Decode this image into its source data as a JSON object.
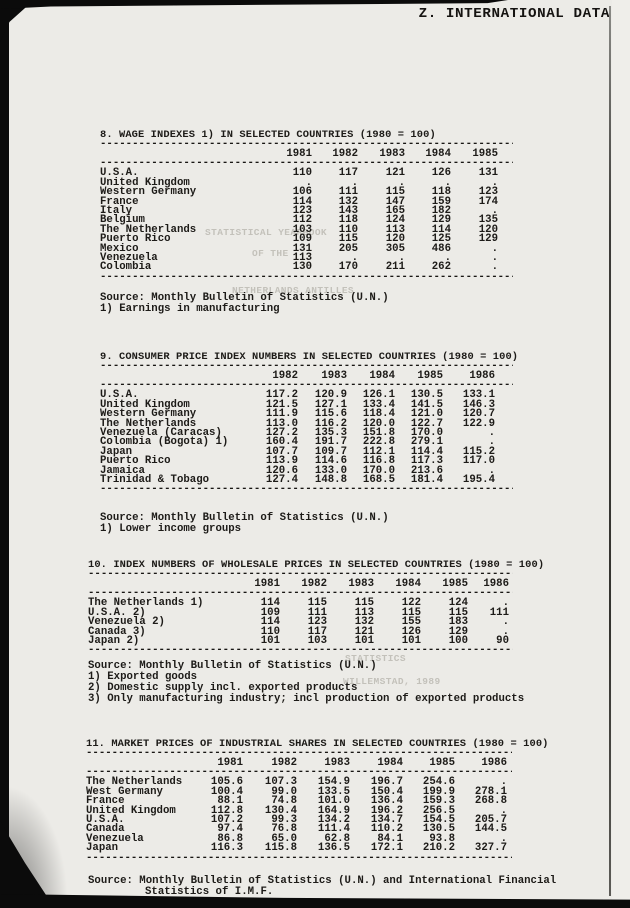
{
  "page": {
    "header_title": "Z. INTERNATIONAL DATA"
  },
  "ghosts": [
    "STATISTICAL YEARBOOK",
    "OF THE",
    "NETHERLANDS ANTILLES",
    "STATISTICS",
    "WILLEMSTAD, 1989"
  ],
  "tables": [
    {
      "title": "8. WAGE INDEXES 1) IN SELECTED COUNTRIES (1980 = 100)",
      "years": [
        "1981",
        "1982",
        "1983",
        "1984",
        "1985"
      ],
      "rows": [
        {
          "label": "U.S.A.",
          "values": [
            "110",
            "117",
            "121",
            "126",
            "131"
          ]
        },
        {
          "label": "United Kingdom",
          "values": [
            ".",
            ".",
            ".",
            ".",
            "."
          ]
        },
        {
          "label": "Western Germany",
          "values": [
            "106",
            "111",
            "115",
            "118",
            "123"
          ]
        },
        {
          "label": "France",
          "values": [
            "114",
            "132",
            "147",
            "159",
            "174"
          ]
        },
        {
          "label": "Italy",
          "values": [
            "123",
            "143",
            "165",
            "182",
            "."
          ]
        },
        {
          "label": "Belgium",
          "values": [
            "112",
            "118",
            "124",
            "129",
            "135"
          ]
        },
        {
          "label": "The Netherlands",
          "values": [
            "103",
            "110",
            "113",
            "114",
            "120"
          ]
        },
        {
          "label": "Puerto Rico",
          "values": [
            "109",
            "115",
            "120",
            "125",
            "129"
          ]
        },
        {
          "label": "Mexico",
          "values": [
            "131",
            "205",
            "305",
            "486",
            "."
          ]
        },
        {
          "label": "Venezuela",
          "values": [
            "113",
            ".",
            ".",
            ".",
            "."
          ]
        },
        {
          "label": "Colombia",
          "values": [
            "130",
            "170",
            "211",
            "262",
            "."
          ]
        }
      ],
      "source_lines": [
        "Source: Monthly Bulletin of Statistics (U.N.)",
        "1) Earnings in manufacturing"
      ]
    },
    {
      "title": "9. CONSUMER PRICE INDEX NUMBERS IN SELECTED COUNTRIES (1980 = 100)",
      "years": [
        "1982",
        "1983",
        "1984",
        "1985",
        "1986"
      ],
      "rows": [
        {
          "label": "U.S.A.",
          "values": [
            "117.2",
            "120.9",
            "126.1",
            "130.5",
            "133.1"
          ]
        },
        {
          "label": "United Kingdom",
          "values": [
            "121.5",
            "127.1",
            "133.4",
            "141.5",
            "146.3"
          ]
        },
        {
          "label": "Western Germany",
          "values": [
            "111.9",
            "115.6",
            "118.4",
            "121.0",
            "120.7"
          ]
        },
        {
          "label": "The Netherlands",
          "values": [
            "113.0",
            "116.2",
            "120.0",
            "122.7",
            "122.9"
          ]
        },
        {
          "label": "Venezuela (Caracas)",
          "values": [
            "127.2",
            "135.3",
            "151.8",
            "170.0",
            "."
          ]
        },
        {
          "label": "Colombia (Bogota) 1)",
          "values": [
            "160.4",
            "191.7",
            "222.8",
            "279.1",
            "."
          ]
        },
        {
          "label": "Japan",
          "values": [
            "107.7",
            "109.7",
            "112.1",
            "114.4",
            "115.2"
          ]
        },
        {
          "label": "Puerto Rico",
          "values": [
            "113.9",
            "114.6",
            "116.8",
            "117.3",
            "117.0"
          ]
        },
        {
          "label": "Jamaica",
          "values": [
            "120.6",
            "133.0",
            "170.0",
            "213.6",
            "."
          ]
        },
        {
          "label": "Trinidad & Tobago",
          "values": [
            "127.4",
            "148.8",
            "168.5",
            "181.4",
            "195.4"
          ]
        }
      ],
      "source_lines": [
        "Source: Monthly Bulletin of Statistics (U.N.)",
        "1) Lower income groups"
      ]
    },
    {
      "title": "10. INDEX NUMBERS OF WHOLESALE PRICES IN SELECTED COUNTRIES (1980 = 100)",
      "years": [
        "1981",
        "1982",
        "1983",
        "1984",
        "1985",
        "1986"
      ],
      "rows": [
        {
          "label": "The Netherlands 1)",
          "values": [
            "114",
            "115",
            "115",
            "122",
            "124",
            "."
          ]
        },
        {
          "label": "U.S.A. 2)",
          "values": [
            "109",
            "111",
            "113",
            "115",
            "115",
            "111"
          ]
        },
        {
          "label": "Venezuela 2)",
          "values": [
            "114",
            "123",
            "132",
            "155",
            "183",
            "."
          ]
        },
        {
          "label": "Canada 3)",
          "values": [
            "110",
            "117",
            "121",
            "126",
            "129",
            "."
          ]
        },
        {
          "label": "Japan 2)",
          "values": [
            "101",
            "103",
            "101",
            "101",
            "100",
            "90"
          ]
        }
      ],
      "source_lines": [
        "Source: Monthly Bulletin of Statistics (U.N.)",
        "1) Exported goods",
        "2) Domestic supply incl. exported products",
        "3) Only manufacturing industry; incl production of exported products"
      ]
    },
    {
      "title": "11. MARKET PRICES OF INDUSTRIAL SHARES IN SELECTED COUNTRIES (1980 = 100)",
      "years": [
        "1981",
        "1982",
        "1983",
        "1984",
        "1985",
        "1986"
      ],
      "rows": [
        {
          "label": "The Netherlands",
          "values": [
            "105.6",
            "107.3",
            "154.9",
            "196.7",
            "254.6",
            "."
          ]
        },
        {
          "label": "West Germany",
          "values": [
            "100.4",
            "99.0",
            "133.5",
            "150.4",
            "199.9",
            "278.1"
          ]
        },
        {
          "label": "France",
          "values": [
            "88.1",
            "74.8",
            "101.0",
            "136.4",
            "159.3",
            "268.8"
          ]
        },
        {
          "label": "United Kingdom",
          "values": [
            "112.8",
            "130.4",
            "164.9",
            "196.2",
            "256.5",
            "."
          ]
        },
        {
          "label": "U.S.A.",
          "values": [
            "107.2",
            "99.3",
            "134.2",
            "134.7",
            "154.5",
            "205.7"
          ]
        },
        {
          "label": "Canada",
          "values": [
            "97.4",
            "76.8",
            "111.4",
            "110.2",
            "130.5",
            "144.5"
          ]
        },
        {
          "label": "Venezuela",
          "values": [
            "86.8",
            "65.0",
            "62.8",
            "84.1",
            "93.8",
            "."
          ]
        },
        {
          "label": "Japan",
          "values": [
            "116.3",
            "115.8",
            "136.5",
            "172.1",
            "210.2",
            "327.7"
          ]
        }
      ],
      "source_lines": [
        "Source: Monthly Bulletin of Statistics (U.N.) and International Financial",
        "Statistics of I.M.F."
      ]
    }
  ]
}
